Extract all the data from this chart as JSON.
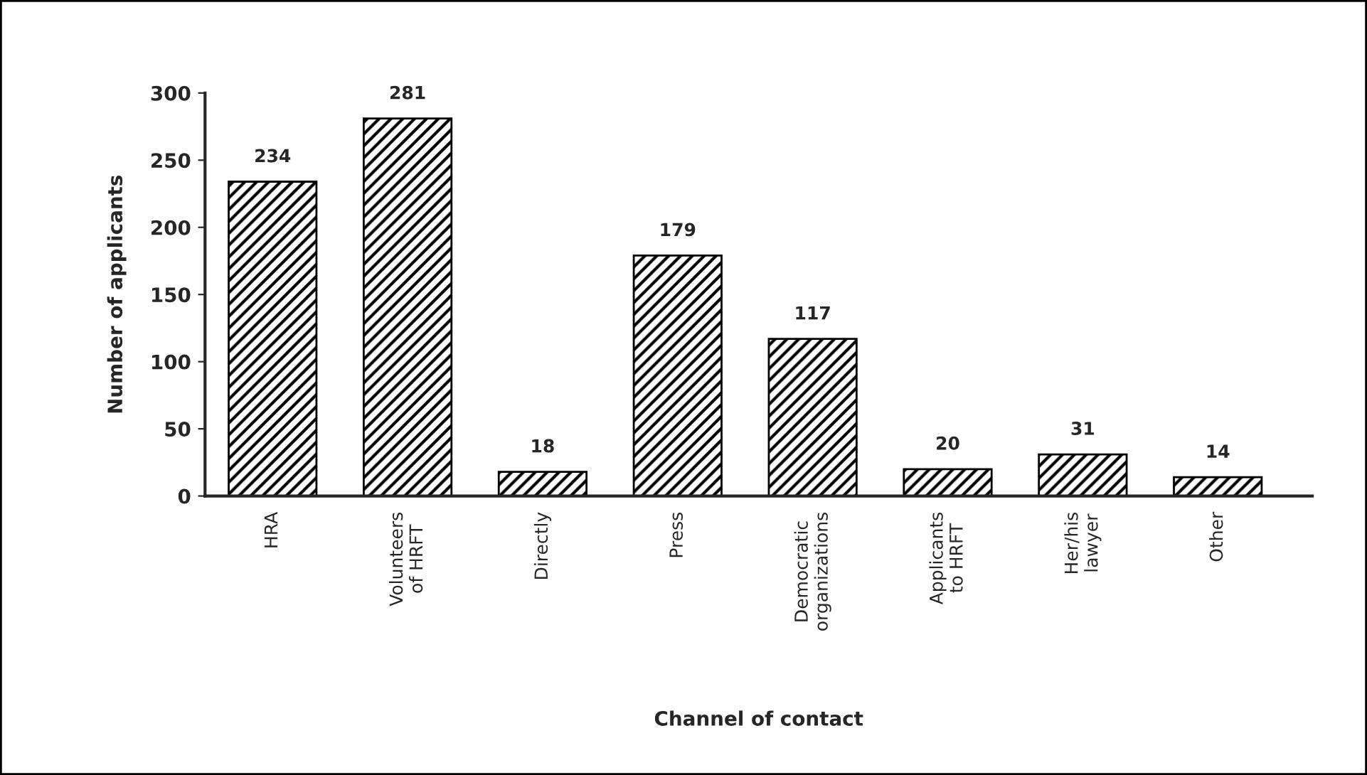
{
  "chart_data": {
    "type": "bar",
    "xlabel": "Channel of contact",
    "ylabel": "Number of applicants",
    "categories": [
      "HRA",
      "Volunteers\nof HRFT",
      "Directly",
      "Press",
      "Democratic\norganizations",
      "Applicants\nto HRFT",
      "Her/his\nlawyer",
      "Other"
    ],
    "values": [
      234,
      281,
      18,
      179,
      117,
      20,
      31,
      14
    ],
    "color": "#000000",
    "ylim": [
      0,
      300
    ],
    "yticks": [
      0,
      50,
      100,
      150,
      200,
      250,
      300
    ],
    "data_labels": true,
    "grid": false
  }
}
